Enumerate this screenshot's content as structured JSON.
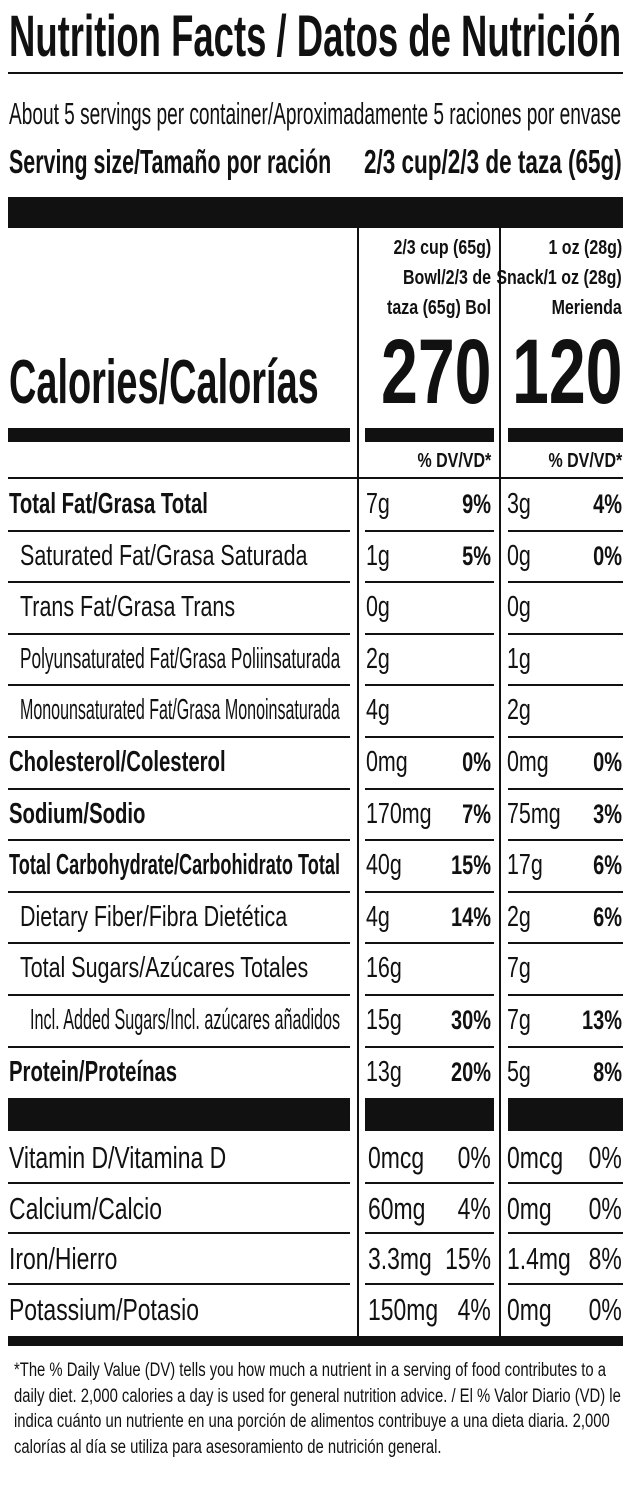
{
  "header": {
    "title": "Nutrition Facts / Datos de Nutrición",
    "servings": "About 5 servings per container/Aproximadamente 5 raciones por envase",
    "serving_size_label": "Serving size/Tamaño por ración",
    "serving_size_value": "2/3 cup/2/3 de taza (65g)"
  },
  "calories_label": "Calories/Calorías",
  "columns": [
    {
      "serving_lines": [
        "2/3 cup (65g)",
        "Bowl/2/3 de",
        "taza (65g) Bol"
      ],
      "calories": 270,
      "dv_header": "% DV/VD*"
    },
    {
      "serving_lines": [
        "1 oz (28g)",
        "Snack/1 oz (28g)",
        "Merienda"
      ],
      "calories": 120,
      "dv_header": "% DV/VD*"
    }
  ],
  "nutrients": [
    {
      "name": "Total Fat/Grasa Total",
      "level": "main",
      "values": [
        [
          "7g",
          "9%"
        ],
        [
          "3g",
          "4%"
        ]
      ]
    },
    {
      "name": "Saturated Fat/Grasa Saturada",
      "level": "sub",
      "values": [
        [
          "1g",
          "5%"
        ],
        [
          "0g",
          "0%"
        ]
      ]
    },
    {
      "name": "Trans Fat/Grasa Trans",
      "level": "sub",
      "values": [
        [
          "0g",
          null
        ],
        [
          "0g",
          null
        ]
      ]
    },
    {
      "name": "Polyunsaturated Fat/Grasa Poliinsaturada",
      "level": "sub",
      "values": [
        [
          "2g",
          null
        ],
        [
          "1g",
          null
        ]
      ]
    },
    {
      "name": "Monounsaturated Fat/Grasa Monoinsaturada",
      "level": "sub",
      "values": [
        [
          "4g",
          null
        ],
        [
          "2g",
          null
        ]
      ]
    },
    {
      "name": "Cholesterol/Colesterol",
      "level": "main",
      "values": [
        [
          "0mg",
          "0%"
        ],
        [
          "0mg",
          "0%"
        ]
      ]
    },
    {
      "name": "Sodium/Sodio",
      "level": "main",
      "values": [
        [
          "170mg",
          "7%"
        ],
        [
          "75mg",
          "3%"
        ]
      ]
    },
    {
      "name": "Total Carbohydrate/Carbohidrato Total",
      "level": "main",
      "values": [
        [
          "40g",
          "15%"
        ],
        [
          "17g",
          "6%"
        ]
      ]
    },
    {
      "name": "Dietary Fiber/Fibra Dietética",
      "level": "sub",
      "values": [
        [
          "4g",
          "14%"
        ],
        [
          "2g",
          "6%"
        ]
      ]
    },
    {
      "name": "Total Sugars/Azúcares Totales",
      "level": "sub",
      "values": [
        [
          "16g",
          null
        ],
        [
          "7g",
          null
        ]
      ]
    },
    {
      "name": "Incl. Added Sugars/Incl. azúcares añadidos",
      "level": "subsub",
      "values": [
        [
          "15g",
          "30%"
        ],
        [
          "7g",
          "13%"
        ]
      ]
    },
    {
      "name": "Protein/Proteínas",
      "level": "main",
      "values": [
        [
          "13g",
          "20%"
        ],
        [
          "5g",
          "8%"
        ]
      ]
    }
  ],
  "vitamins": [
    {
      "name": "Vitamin D/Vitamina D",
      "values": [
        [
          "0mcg",
          "0%"
        ],
        [
          "0mcg",
          "0%"
        ]
      ]
    },
    {
      "name": "Calcium/Calcio",
      "values": [
        [
          "60mg",
          "4%"
        ],
        [
          "0mg",
          "0%"
        ]
      ]
    },
    {
      "name": "Iron/Hierro",
      "values": [
        [
          "3.3mg",
          "15%"
        ],
        [
          "1.4mg",
          "8%"
        ]
      ]
    },
    {
      "name": "Potassium/Potasio",
      "values": [
        [
          "150mg",
          "4%"
        ],
        [
          "0mg",
          "0%"
        ]
      ]
    }
  ],
  "footnote": "*The % Daily Value (DV) tells you how much a nutrient in a serving of food contributes to a daily diet. 2,000 calories a day is used for general nutrition advice. / El % Valor Diario (VD) le indica cuánto un nutriente en una porción de alimentos contribuye a una dieta diaria. 2,000 calorías al día se utiliza para asesoramiento de nutrición general."
}
